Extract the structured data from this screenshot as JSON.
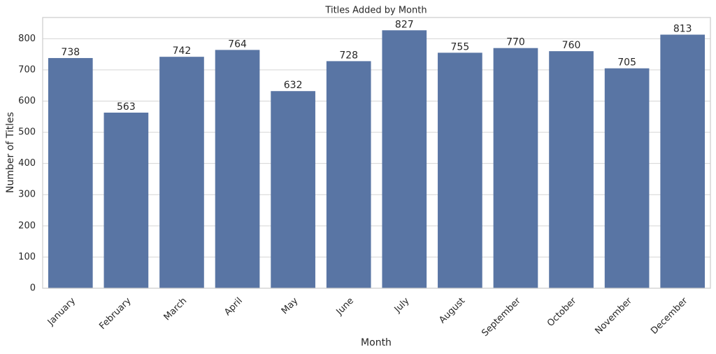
{
  "chart_data": {
    "type": "bar",
    "title": "Titles Added by Month",
    "x_label": "Month",
    "y_label": "Number of Titles",
    "categories": [
      "January",
      "February",
      "March",
      "April",
      "May",
      "June",
      "July",
      "August",
      "September",
      "October",
      "November",
      "December"
    ],
    "values": [
      738,
      563,
      742,
      764,
      632,
      728,
      827,
      755,
      770,
      760,
      705,
      813
    ],
    "color": "#5975a4",
    "ylim": [
      0,
      868
    ],
    "yticks": [
      0,
      100,
      200,
      300,
      400,
      500,
      600,
      700,
      800
    ],
    "grid": true
  }
}
